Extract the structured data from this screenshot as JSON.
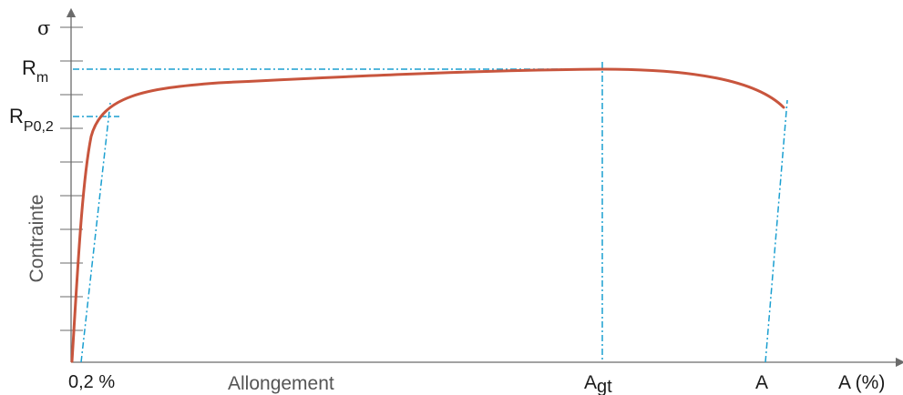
{
  "diagram": {
    "axis_symbol": "σ",
    "y_axis_label": "Contrainte",
    "x_axis_label": "Allongement",
    "x_axis_unit_label": "A (%)",
    "offset_label": "0,2 %",
    "rm_label": {
      "main": "R",
      "sub": "m"
    },
    "rp_label": {
      "main": "R",
      "sub": "P0,2"
    },
    "agt_label": {
      "main": "A",
      "sub": "gt"
    },
    "a_label": "A",
    "colors": {
      "curve": "#c8553d",
      "construction_lines": "#1a9fd0",
      "axes": "#6b6b6b",
      "text": "#1a1a1a"
    }
  }
}
